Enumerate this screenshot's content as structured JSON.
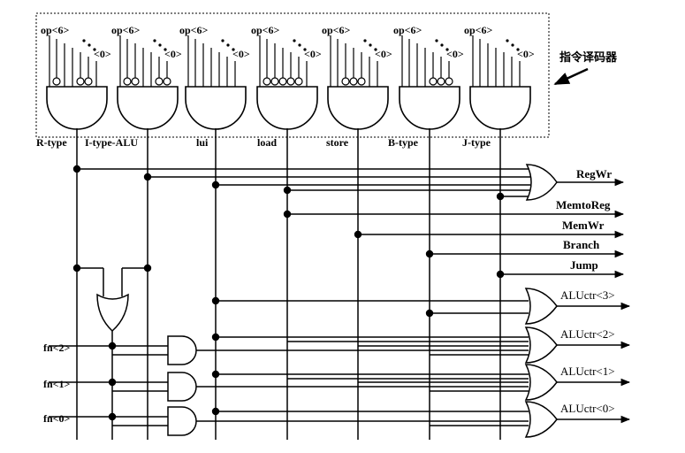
{
  "decoder_label": "指令译码器",
  "gates": [
    {
      "name": "R-type",
      "op_hi": "op<6>",
      "op_lo": "<0>"
    },
    {
      "name": "I-type-ALU",
      "op_hi": "op<6>",
      "op_lo": "<0>"
    },
    {
      "name": "lui",
      "op_hi": "op<6>",
      "op_lo": "<0>"
    },
    {
      "name": "load",
      "op_hi": "op<6>",
      "op_lo": "<0>"
    },
    {
      "name": "store",
      "op_hi": "op<6>",
      "op_lo": "<0>"
    },
    {
      "name": "B-type",
      "op_hi": "op<6>",
      "op_lo": "<0>"
    },
    {
      "name": "J-type",
      "op_hi": "op<6>",
      "op_lo": "<0>"
    }
  ],
  "outputs": [
    "RegWr",
    "MemtoReg",
    "MemWr",
    "Branch",
    "Jump"
  ],
  "alu_outputs": [
    "ALUctr<3>",
    "ALUctr<2>",
    "ALUctr<1>",
    "ALUctr<0>"
  ],
  "fn_inputs": [
    "fn<2>",
    "fn<1>",
    "fn<0>"
  ]
}
